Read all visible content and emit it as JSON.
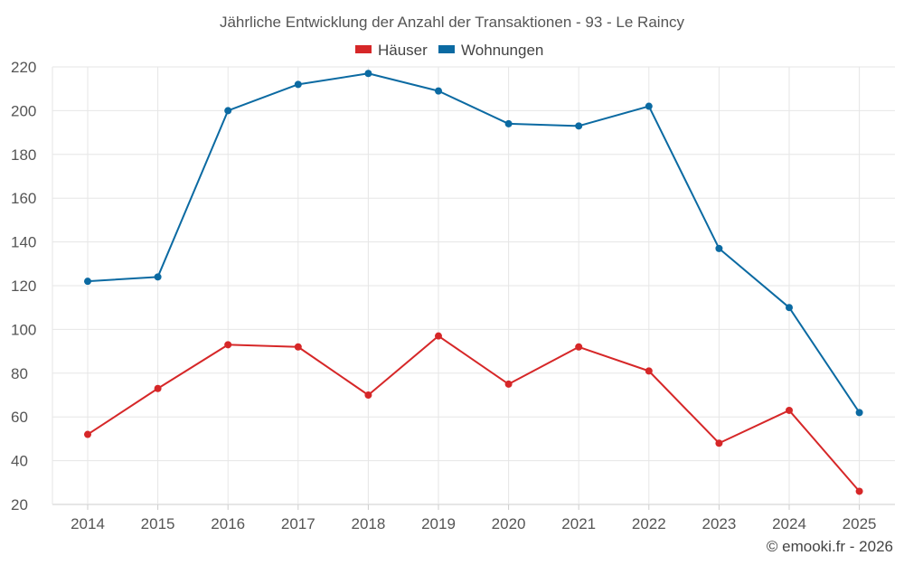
{
  "chart_data": {
    "type": "line",
    "title": "Jährliche Entwicklung der Anzahl der Transaktionen - 93 - Le Raincy",
    "categories": [
      "2014",
      "2015",
      "2016",
      "2017",
      "2018",
      "2019",
      "2020",
      "2021",
      "2022",
      "2023",
      "2024",
      "2025"
    ],
    "series": [
      {
        "name": "Häuser",
        "color": "#d62728",
        "values": [
          52,
          73,
          93,
          92,
          70,
          97,
          75,
          92,
          81,
          48,
          63,
          26
        ]
      },
      {
        "name": "Wohnungen",
        "color": "#0b6aa2",
        "values": [
          122,
          124,
          200,
          212,
          217,
          209,
          194,
          193,
          202,
          137,
          110,
          62
        ]
      }
    ],
    "ylim": [
      20,
      220
    ],
    "yticks": [
      "20",
      "40",
      "60",
      "80",
      "100",
      "120",
      "140",
      "160",
      "180",
      "200",
      "220"
    ],
    "xlabel": "",
    "ylabel": "",
    "grid": true,
    "legend": "top-center"
  },
  "credit": "© emooki.fr - 2026"
}
